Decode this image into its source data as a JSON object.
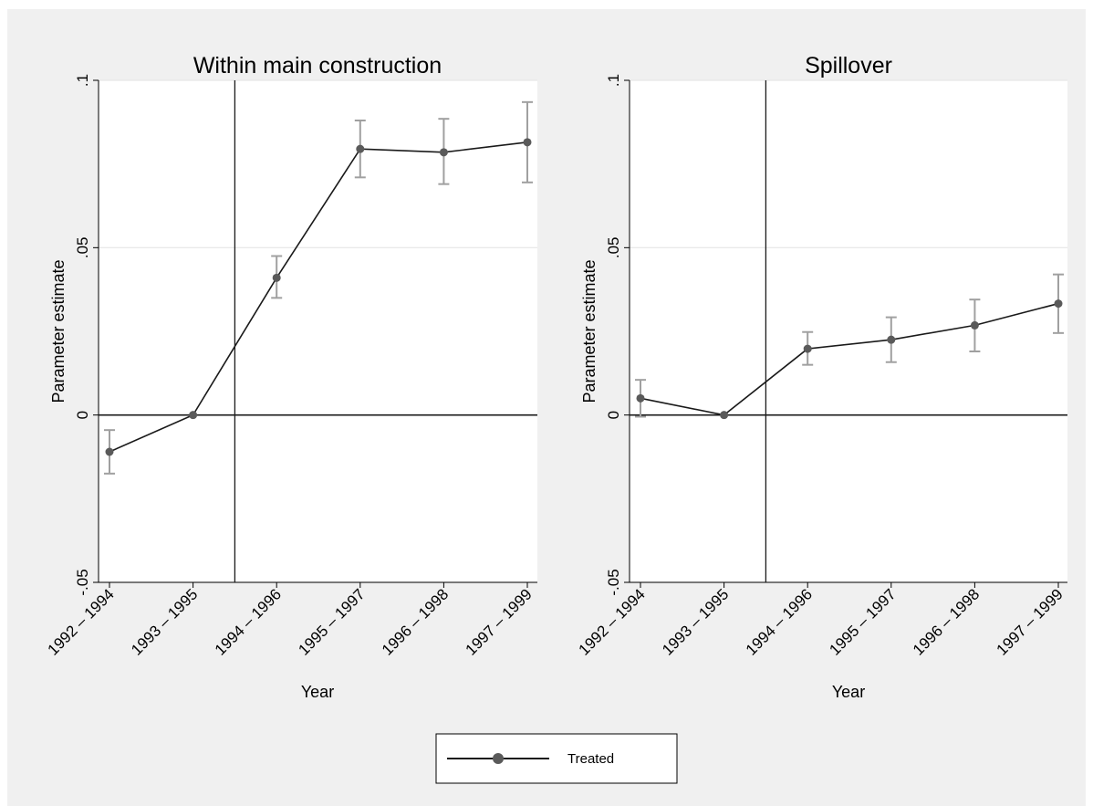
{
  "chart_data": [
    {
      "type": "line",
      "title": "Within main construction",
      "xlabel": "Year",
      "ylabel": "Parameter estimate",
      "categories": [
        "1992 – 1994",
        "1993 – 1995",
        "1994 – 1996",
        "1995 – 1997",
        "1996 – 1998",
        "1997 – 1999"
      ],
      "ylim": [
        -0.05,
        0.1
      ],
      "yticks": [
        -0.05,
        0,
        0.05,
        0.1
      ],
      "ytick_labels": [
        "-.05",
        "0",
        ".05",
        ".1"
      ],
      "reference_lines": {
        "y": 0,
        "x_between": [
          "1993 – 1995",
          "1994 – 1996"
        ]
      },
      "grid": "horizontal",
      "series": [
        {
          "name": "Treated",
          "values": [
            -0.011,
            0.0,
            0.041,
            0.0795,
            0.0785,
            0.0815
          ],
          "ci_low": [
            -0.0175,
            0.0,
            0.035,
            0.071,
            0.069,
            0.0695
          ],
          "ci_high": [
            -0.0045,
            0.0,
            0.0475,
            0.088,
            0.0885,
            0.0935
          ]
        }
      ]
    },
    {
      "type": "line",
      "title": "Spillover",
      "xlabel": "Year",
      "ylabel": "Parameter estimate",
      "categories": [
        "1992 – 1994",
        "1993 – 1995",
        "1994 – 1996",
        "1995 – 1997",
        "1996 – 1998",
        "1997 – 1999"
      ],
      "ylim": [
        -0.05,
        0.1
      ],
      "yticks": [
        -0.05,
        0,
        0.05,
        0.1
      ],
      "ytick_labels": [
        "-.05",
        "0",
        ".05",
        ".1"
      ],
      "reference_lines": {
        "y": 0,
        "x_between": [
          "1993 – 1995",
          "1994 – 1996"
        ]
      },
      "grid": "horizontal",
      "series": [
        {
          "name": "Treated",
          "values": [
            0.005,
            0.0,
            0.0198,
            0.0225,
            0.0268,
            0.0333
          ],
          "ci_low": [
            -0.0005,
            0.0,
            0.015,
            0.0158,
            0.019,
            0.0245
          ],
          "ci_high": [
            0.0105,
            0.0,
            0.0248,
            0.0292,
            0.0345,
            0.042
          ]
        }
      ]
    }
  ],
  "legend": {
    "label": "Treated",
    "position": "bottom-center"
  },
  "colors": {
    "background": "#f0f0f0",
    "plot_background": "#ffffff",
    "line": "#1a1a1a",
    "marker": "#5a5a5a",
    "error_bar": "#a0a0a0",
    "grid": "#e6e6e6",
    "reference": "#1a1a1a"
  }
}
